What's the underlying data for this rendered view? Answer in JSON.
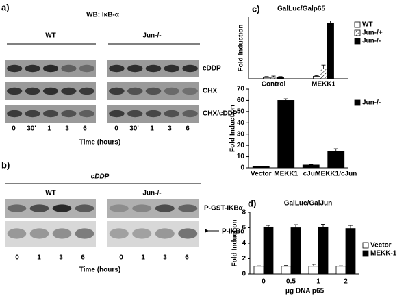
{
  "panel_a": {
    "label": "a)",
    "title": "WB: IκB-α",
    "groups": [
      "WT",
      "Jun-/-"
    ],
    "rows": [
      "cDDP",
      "CHX",
      "CHX/cDDP"
    ],
    "lanes": [
      "0",
      "30'",
      "1",
      "3",
      "6"
    ],
    "xlabel": "Time (hours)"
  },
  "panel_b": {
    "label": "b)",
    "title": "cDDP",
    "groups": [
      "WT",
      "Jun-/-"
    ],
    "rows": [
      "P-GST-IKBα",
      "P-IKBα"
    ],
    "lanes": [
      "0",
      "1",
      "3",
      "6"
    ],
    "xlabel": "Time (hours)"
  },
  "panel_c_label": "c)",
  "panel_d_label": "d)",
  "chart_data": [
    {
      "type": "bar",
      "title": "GalLuc/Galp65",
      "ylabel": "Fold Induction",
      "categories": [
        "Control",
        "MEKK1"
      ],
      "series": [
        {
          "name": "WT",
          "color": "#ffffff",
          "values": [
            1,
            2
          ],
          "errors": [
            0.8,
            0.5
          ]
        },
        {
          "name": "Jun-/+",
          "color": "#ffffff",
          "hatch": true,
          "values": [
            1.2,
            8
          ],
          "errors": [
            1,
            3
          ]
        },
        {
          "name": "Jun-/-",
          "color": "#000000",
          "values": [
            1,
            45
          ],
          "errors": [
            0.8,
            2
          ]
        }
      ],
      "ylim": [
        0,
        50
      ],
      "legend": "right"
    },
    {
      "type": "bar",
      "ylabel": "Fold Induction",
      "categories": [
        "Vector",
        "MEKK1",
        "cJun",
        "MEKK1/cJun"
      ],
      "series": [
        {
          "name": "Jun-/-",
          "color": "#000000",
          "values": [
            1,
            60,
            2.5,
            14.5
          ],
          "errors": [
            0.3,
            1.5,
            0.5,
            2.5
          ]
        }
      ],
      "ylim": [
        0,
        70
      ],
      "yticks": [
        0,
        10,
        20,
        30,
        40,
        50,
        60,
        70
      ],
      "legend": "right"
    },
    {
      "type": "bar",
      "title": "GalLuc/GalJun",
      "xlabel": "μg DNA p65",
      "ylabel": "Fold Induction",
      "categories": [
        "0",
        "0.5",
        "1",
        "2"
      ],
      "series": [
        {
          "name": "Vector",
          "color": "#ffffff",
          "values": [
            1,
            1,
            1,
            1
          ],
          "errors": [
            0.05,
            0.1,
            0.25,
            0.05
          ]
        },
        {
          "name": "MEKK-1",
          "color": "#000000",
          "values": [
            6.1,
            6,
            6.1,
            5.9
          ],
          "errors": [
            0.2,
            0.4,
            0.35,
            0.4
          ]
        }
      ],
      "ylim": [
        0,
        8
      ],
      "yticks": [
        0,
        2,
        4,
        6,
        8
      ],
      "legend": "right"
    }
  ]
}
